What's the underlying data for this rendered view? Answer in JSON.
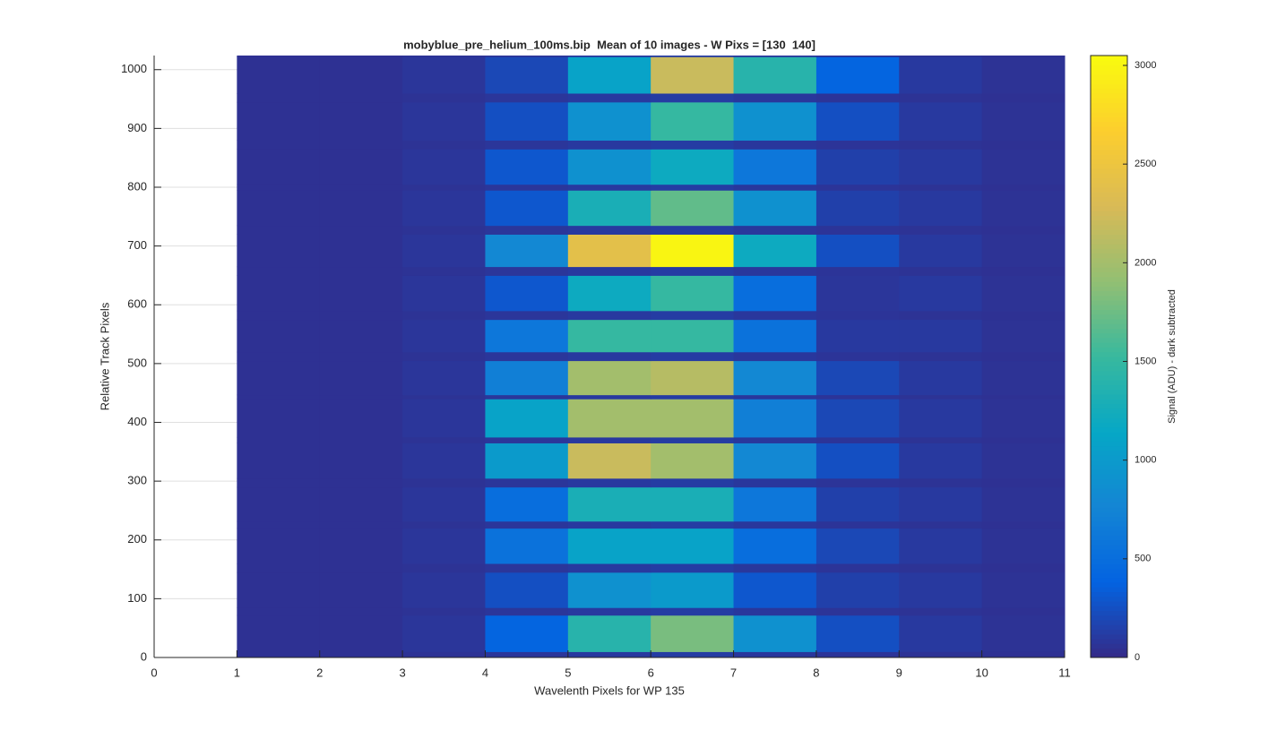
{
  "chart_data": {
    "type": "heatmap",
    "title": "mobyblue_pre_helium_100ms.bip  Mean of 10 images - W Pixs = [130  140]",
    "x_label": "Wavelenth Pixels for WP 135",
    "y_label": "Relative Track Pixels",
    "colorbar_label": "Signal (ADU) - dark subtracted",
    "xlim": [
      0,
      11
    ],
    "xticks": [
      0,
      1,
      2,
      3,
      4,
      5,
      6,
      7,
      8,
      9,
      10,
      11
    ],
    "ylim": [
      0,
      1024
    ],
    "yticks": [
      0,
      100,
      200,
      300,
      400,
      500,
      600,
      700,
      800,
      900,
      1000
    ],
    "grid": true,
    "clim": [
      0,
      3050
    ],
    "colorbar_ticks": [
      0,
      500,
      1000,
      1500,
      2000,
      2500,
      3000
    ],
    "colormap": [
      "#352a87",
      "#0363e1",
      "#1485d4",
      "#06a7c6",
      "#38b99e",
      "#92bf73",
      "#d9ba56",
      "#fcce2e",
      "#f9fb0e"
    ],
    "x_bins": [
      1,
      2,
      3,
      4,
      5,
      6,
      7,
      8,
      9,
      10,
      11
    ],
    "y_bins": [
      0,
      10,
      72,
      85,
      145,
      160,
      220,
      232,
      290,
      305,
      365,
      375,
      440,
      447,
      505,
      520,
      575,
      590,
      650,
      665,
      720,
      735,
      795,
      805,
      865,
      880,
      945,
      960,
      1022,
      1024
    ],
    "values": [
      [
        50,
        50,
        60,
        80,
        100,
        120,
        90,
        70,
        60,
        50
      ],
      [
        50,
        50,
        80,
        400,
        1400,
        1800,
        900,
        250,
        100,
        60
      ],
      [
        50,
        50,
        60,
        80,
        100,
        120,
        90,
        70,
        60,
        50
      ],
      [
        50,
        50,
        80,
        250,
        900,
        1000,
        300,
        150,
        100,
        60
      ],
      [
        50,
        50,
        60,
        80,
        100,
        120,
        90,
        70,
        60,
        50
      ],
      [
        50,
        50,
        80,
        550,
        1100,
        1100,
        500,
        200,
        100,
        60
      ],
      [
        50,
        50,
        60,
        80,
        100,
        120,
        90,
        70,
        60,
        50
      ],
      [
        50,
        50,
        80,
        500,
        1300,
        1300,
        600,
        150,
        100,
        60
      ],
      [
        50,
        50,
        60,
        80,
        100,
        120,
        90,
        70,
        60,
        50
      ],
      [
        50,
        50,
        80,
        1000,
        2200,
        2000,
        800,
        250,
        100,
        60
      ],
      [
        50,
        50,
        60,
        80,
        100,
        120,
        90,
        70,
        60,
        50
      ],
      [
        50,
        50,
        80,
        1100,
        2000,
        2000,
        700,
        200,
        100,
        60
      ],
      [
        50,
        50,
        60,
        80,
        100,
        120,
        90,
        70,
        60,
        50
      ],
      [
        50,
        50,
        80,
        700,
        2000,
        2100,
        800,
        200,
        100,
        60
      ],
      [
        50,
        50,
        60,
        80,
        100,
        120,
        90,
        70,
        60,
        50
      ],
      [
        50,
        50,
        80,
        600,
        1500,
        1500,
        550,
        100,
        100,
        60
      ],
      [
        50,
        50,
        60,
        80,
        100,
        120,
        90,
        70,
        60,
        50
      ],
      [
        50,
        50,
        80,
        300,
        1200,
        1500,
        500,
        80,
        100,
        60
      ],
      [
        50,
        50,
        60,
        80,
        100,
        120,
        90,
        70,
        60,
        50
      ],
      [
        50,
        50,
        80,
        800,
        2400,
        3000,
        1200,
        250,
        100,
        60
      ],
      [
        50,
        50,
        60,
        80,
        100,
        120,
        90,
        70,
        60,
        50
      ],
      [
        50,
        50,
        80,
        300,
        1300,
        1700,
        900,
        150,
        100,
        60
      ],
      [
        50,
        50,
        60,
        80,
        100,
        120,
        90,
        70,
        60,
        50
      ],
      [
        50,
        50,
        80,
        300,
        900,
        1200,
        600,
        150,
        100,
        60
      ],
      [
        50,
        50,
        60,
        80,
        100,
        120,
        90,
        70,
        60,
        50
      ],
      [
        50,
        50,
        80,
        250,
        900,
        1500,
        900,
        250,
        100,
        60
      ],
      [
        50,
        50,
        60,
        80,
        100,
        120,
        90,
        70,
        60,
        50
      ],
      [
        50,
        50,
        80,
        200,
        1100,
        2200,
        1400,
        400,
        100,
        60
      ],
      [
        50,
        50,
        60,
        80,
        100,
        120,
        90,
        70,
        60,
        50
      ]
    ]
  }
}
